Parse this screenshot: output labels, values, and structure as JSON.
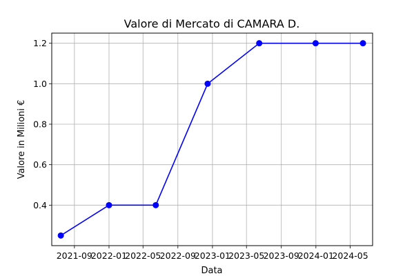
{
  "chart_data": {
    "type": "line",
    "title": "Valore di Mercato di CAMARA D.",
    "xlabel": "Data",
    "ylabel": "Valore in Milioni €",
    "x": [
      "2021-07-15",
      "2022-01-01",
      "2022-06-15",
      "2022-12-15",
      "2023-06-15",
      "2023-12-31",
      "2024-06-15"
    ],
    "series": [
      {
        "values": [
          0.25,
          0.4,
          0.4,
          1.0,
          1.2,
          1.2,
          1.2
        ],
        "color": "#0000ff"
      }
    ],
    "x_ticks": [
      {
        "date": "2021-09-01",
        "label": "2021-09"
      },
      {
        "date": "2022-01-01",
        "label": "2022-01"
      },
      {
        "date": "2022-05-01",
        "label": "2022-05"
      },
      {
        "date": "2022-09-01",
        "label": "2022-09"
      },
      {
        "date": "2023-01-01",
        "label": "2023-01"
      },
      {
        "date": "2023-05-01",
        "label": "2023-05"
      },
      {
        "date": "2023-09-01",
        "label": "2023-09"
      },
      {
        "date": "2024-01-01",
        "label": "2024-01"
      },
      {
        "date": "2024-05-01",
        "label": "2024-05"
      }
    ],
    "y_ticks": [
      {
        "value": 0.4,
        "label": "0.4"
      },
      {
        "value": 0.6,
        "label": "0.6"
      },
      {
        "value": 0.8,
        "label": "0.8"
      },
      {
        "value": 1.0,
        "label": "1.0"
      },
      {
        "value": 1.2,
        "label": "1.2"
      }
    ],
    "xlim": [
      "2021-06-13",
      "2024-07-19"
    ],
    "ylim": [
      0.2,
      1.25
    ],
    "grid": true
  }
}
